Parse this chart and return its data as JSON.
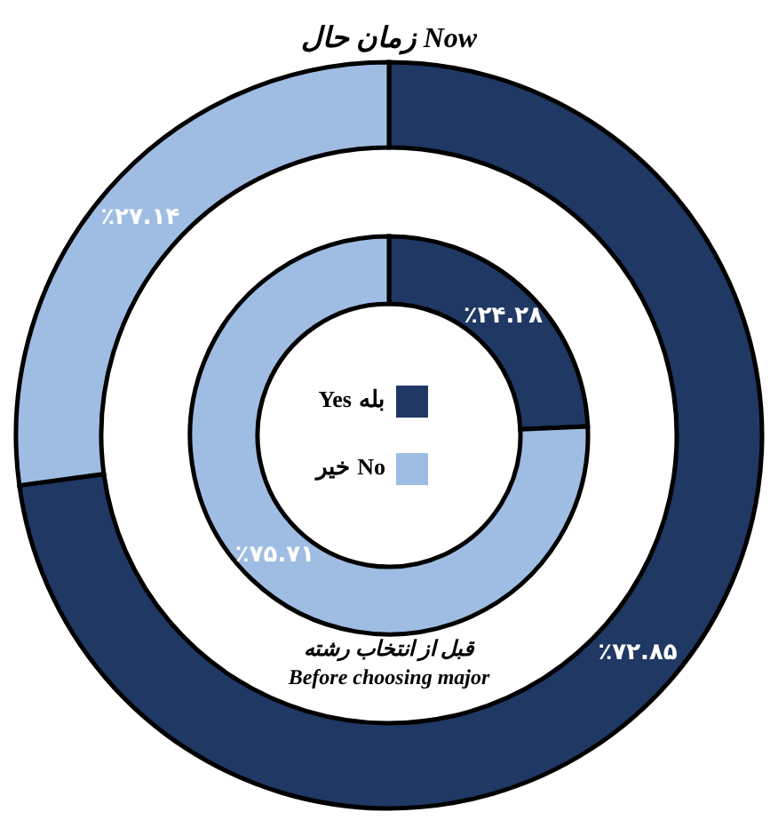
{
  "chart_data": {
    "type": "donut",
    "categories": [
      "Yes\nبله",
      "خیر\nNo"
    ],
    "colors": [
      "#1f3864",
      "#9fbde3"
    ],
    "legend": "center",
    "series": [
      {
        "name": "قبل از انتخاب رشته\nBefore choosing major",
        "values": [
          24.28,
          75.71
        ],
        "value_labels": [
          "٪۲۴.۲۸",
          "٪۷۵.۷۱"
        ]
      },
      {
        "name": "زمان حال Now",
        "values": [
          72.85,
          27.14
        ],
        "value_labels": [
          "٪۷۲.۸۵",
          "٪۲۷.۱۴"
        ]
      }
    ]
  }
}
